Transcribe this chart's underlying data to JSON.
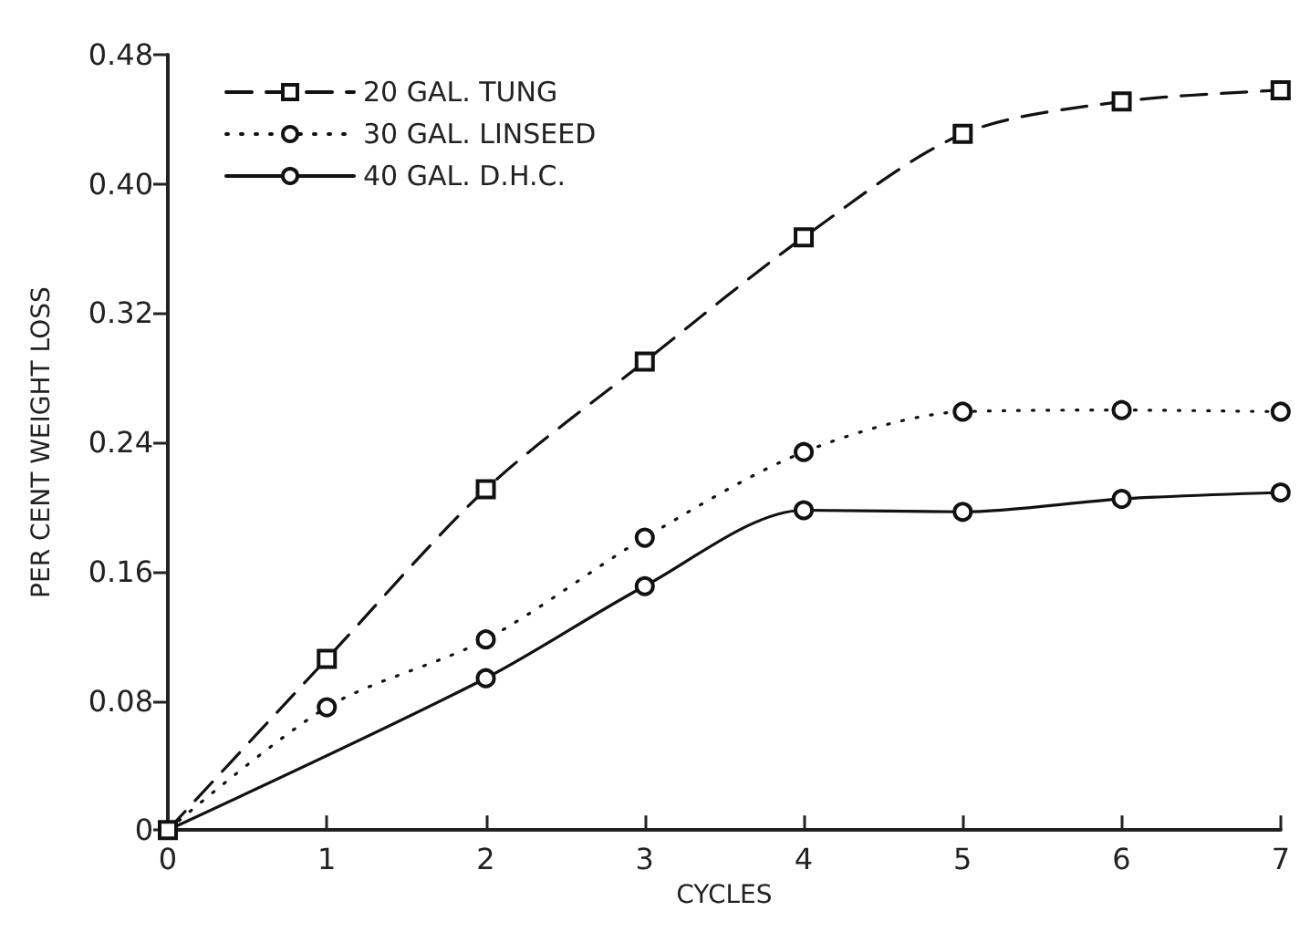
{
  "chart_data": {
    "type": "line",
    "xlabel": "CYCLES",
    "ylabel": "PER CENT WEIGHT LOSS",
    "x": [
      0,
      1,
      2,
      3,
      4,
      5,
      6,
      7
    ],
    "series": [
      {
        "name": "20 GAL. TUNG",
        "color": "#111111",
        "marker": "square",
        "line_style": "dashed",
        "values": [
          0,
          0.106,
          0.211,
          0.29,
          0.367,
          0.431,
          0.451,
          0.458
        ]
      },
      {
        "name": "30 GAL. LINSEED",
        "color": "#111111",
        "marker": "circle",
        "line_style": "dotted",
        "values": [
          0,
          0.076,
          0.118,
          0.181,
          0.234,
          0.259,
          0.26,
          0.259
        ]
      },
      {
        "name": "40 GAL. D.H.C.",
        "color": "#111111",
        "marker": "circle",
        "line_style": "solid",
        "values": [
          0,
          null,
          0.094,
          0.151,
          0.198,
          0.197,
          0.205,
          0.209
        ]
      }
    ],
    "xlim": [
      0,
      7
    ],
    "xticks": [
      0,
      1,
      2,
      3,
      4,
      5,
      6,
      7
    ],
    "ylim": [
      0,
      0.48
    ],
    "yticks": [
      0,
      0.08,
      0.16,
      0.24,
      0.32,
      {
        "value": 0.4,
        "label": "0.40"
      },
      0.48
    ],
    "grid": false,
    "legend": "top left"
  }
}
